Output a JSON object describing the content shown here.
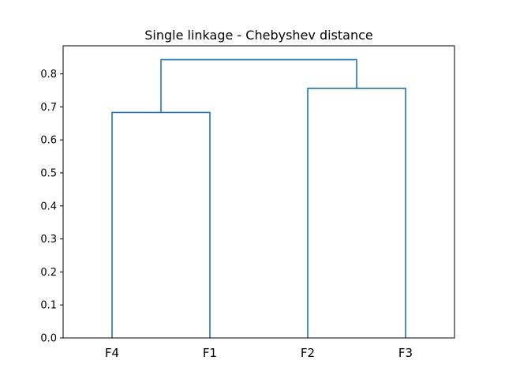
{
  "chart_data": {
    "type": "dendrogram",
    "title": "Single linkage - Chebyshev distance",
    "xlabel": "",
    "ylabel": "",
    "leaves": [
      "F4",
      "F1",
      "F2",
      "F3"
    ],
    "merges": [
      {
        "left": "F4",
        "right": "F1",
        "height": 0.683
      },
      {
        "left": "F2",
        "right": "F3",
        "height": 0.756
      },
      {
        "left": "F4+F1",
        "right": "F2+F3",
        "height": 0.843
      }
    ],
    "yticks": [
      "0.0",
      "0.1",
      "0.2",
      "0.3",
      "0.4",
      "0.5",
      "0.6",
      "0.7",
      "0.8"
    ],
    "ytick_values": [
      0,
      0.1,
      0.2,
      0.3,
      0.4,
      0.5,
      0.6,
      0.7,
      0.8
    ],
    "ylim": [
      0,
      0.885
    ],
    "grid": false,
    "line_color": "#1f77b4"
  }
}
